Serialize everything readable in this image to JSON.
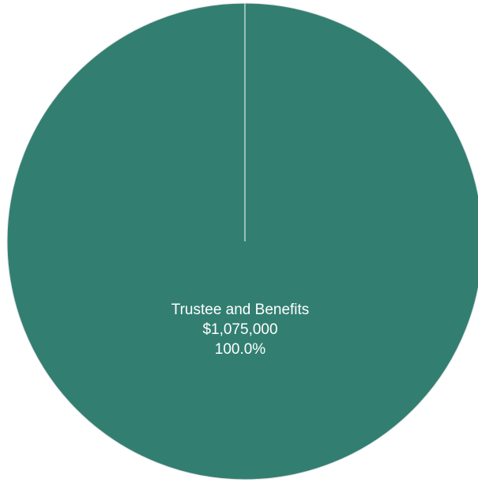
{
  "chart_data": {
    "type": "pie",
    "title": "",
    "slices": [
      {
        "label": "Trustee and Benefits",
        "value": 1075000,
        "value_text": "$1,075,000",
        "percent": 100.0,
        "percent_text": "100.0%",
        "color": "#327f72"
      }
    ],
    "legend": "none"
  }
}
